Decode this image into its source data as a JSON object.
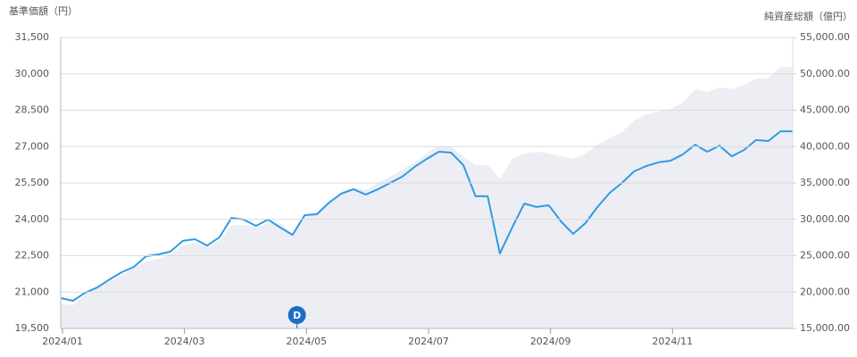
{
  "chart_data": {
    "type": "line",
    "ylabel": "基準価額（円）",
    "y2label": "純資産総額（億円）",
    "categories": [
      "2024/01",
      null,
      null,
      null,
      null,
      null,
      null,
      null,
      null,
      null,
      "2024/03",
      null,
      null,
      null,
      null,
      null,
      null,
      null,
      null,
      null,
      "2024/05",
      null,
      null,
      null,
      null,
      null,
      null,
      null,
      null,
      null,
      "2024/07",
      null,
      null,
      null,
      null,
      null,
      null,
      null,
      null,
      null,
      "2024/09",
      null,
      null,
      null,
      null,
      null,
      null,
      null,
      null,
      null,
      "2024/11",
      null,
      null,
      null,
      null,
      null,
      null,
      null,
      null,
      null,
      null
    ],
    "series": [
      {
        "style": "area",
        "axis": "y2",
        "color": "#eceef3",
        "values": [
          18440,
          18190,
          19660,
          20640,
          21500,
          22360,
          23340,
          24200,
          24570,
          25180,
          26410,
          26780,
          26290,
          27020,
          29230,
          29230,
          28870,
          29480,
          29480,
          28010,
          30710,
          30950,
          32550,
          33770,
          34390,
          34020,
          35000,
          35860,
          36840,
          37820,
          39050,
          40150,
          39910,
          38680,
          37460,
          37460,
          35610,
          38310,
          39050,
          39290,
          39050,
          38680,
          38310,
          39050,
          40280,
          41140,
          42000,
          43590,
          44450,
          44820,
          45180,
          46040,
          47880,
          47520,
          48130,
          47880,
          48500,
          49360,
          49360,
          50950,
          50950
        ]
      },
      {
        "style": "line",
        "axis": "y",
        "color": "#2f9be3",
        "values": [
          20750,
          20640,
          20970,
          21190,
          21520,
          21820,
          22040,
          22480,
          22550,
          22670,
          23110,
          23180,
          22920,
          23250,
          24060,
          23990,
          23730,
          23990,
          23660,
          23360,
          24170,
          24210,
          24690,
          25060,
          25240,
          25020,
          25240,
          25500,
          25760,
          26160,
          26490,
          26790,
          26750,
          26240,
          24950,
          24950,
          22590,
          23660,
          24650,
          24510,
          24580,
          23920,
          23400,
          23840,
          24510,
          25090,
          25500,
          25980,
          26200,
          26350,
          26420,
          26680,
          27080,
          26790,
          27040,
          26600,
          26860,
          27270,
          27230,
          27630,
          27630
        ]
      }
    ],
    "ylim": [
      19500,
      31500
    ],
    "yticks": [
      {
        "value": 19500,
        "label": "19,500"
      },
      {
        "value": 21000,
        "label": "21,000"
      },
      {
        "value": 22500,
        "label": "22,500"
      },
      {
        "value": 24000,
        "label": "24,000"
      },
      {
        "value": 25500,
        "label": "25,500"
      },
      {
        "value": 27000,
        "label": "27,000"
      },
      {
        "value": 28500,
        "label": "28,500"
      },
      {
        "value": 30000,
        "label": "30,000"
      },
      {
        "value": 31500,
        "label": "31,500"
      }
    ],
    "y2lim": [
      15000,
      55000
    ],
    "y2ticks": [
      {
        "value": 15000,
        "label": "15,000.00"
      },
      {
        "value": 20000,
        "label": "20,000.00"
      },
      {
        "value": 25000,
        "label": "25,000.00"
      },
      {
        "value": 30000,
        "label": "30,000.00"
      },
      {
        "value": 35000,
        "label": "35,000.00"
      },
      {
        "value": 40000,
        "label": "40,000.00"
      },
      {
        "value": 45000,
        "label": "45,000.00"
      },
      {
        "value": 50000,
        "label": "50,000.00"
      },
      {
        "value": 55000,
        "label": "55,000.00"
      }
    ],
    "grid": true,
    "marker": {
      "text": "D",
      "index": 19
    }
  }
}
